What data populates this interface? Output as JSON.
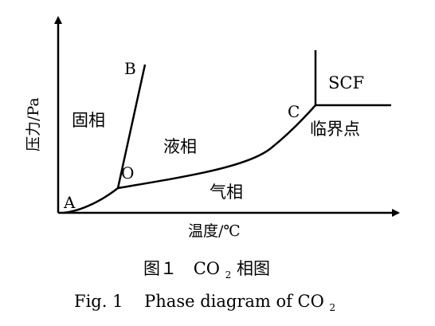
{
  "figure": {
    "axes": {
      "y_label": "压力/Pa",
      "x_label": "温度/℃"
    },
    "regions": {
      "solid": "固相",
      "liquid": "液相",
      "gas": "气相",
      "supercritical": "SCF"
    },
    "points": {
      "a": "A",
      "b": "B",
      "o": "O",
      "c": "C",
      "critical": "临界点"
    },
    "caption": {
      "cn_prefix": "图１",
      "cn_formula_main": "CO",
      "cn_formula_sub": "2",
      "cn_suffix": "相图",
      "en_prefix": "Fig. 1",
      "en_text": "Phase diagram of CO",
      "en_sub": "2"
    },
    "line_color": "#000000"
  }
}
